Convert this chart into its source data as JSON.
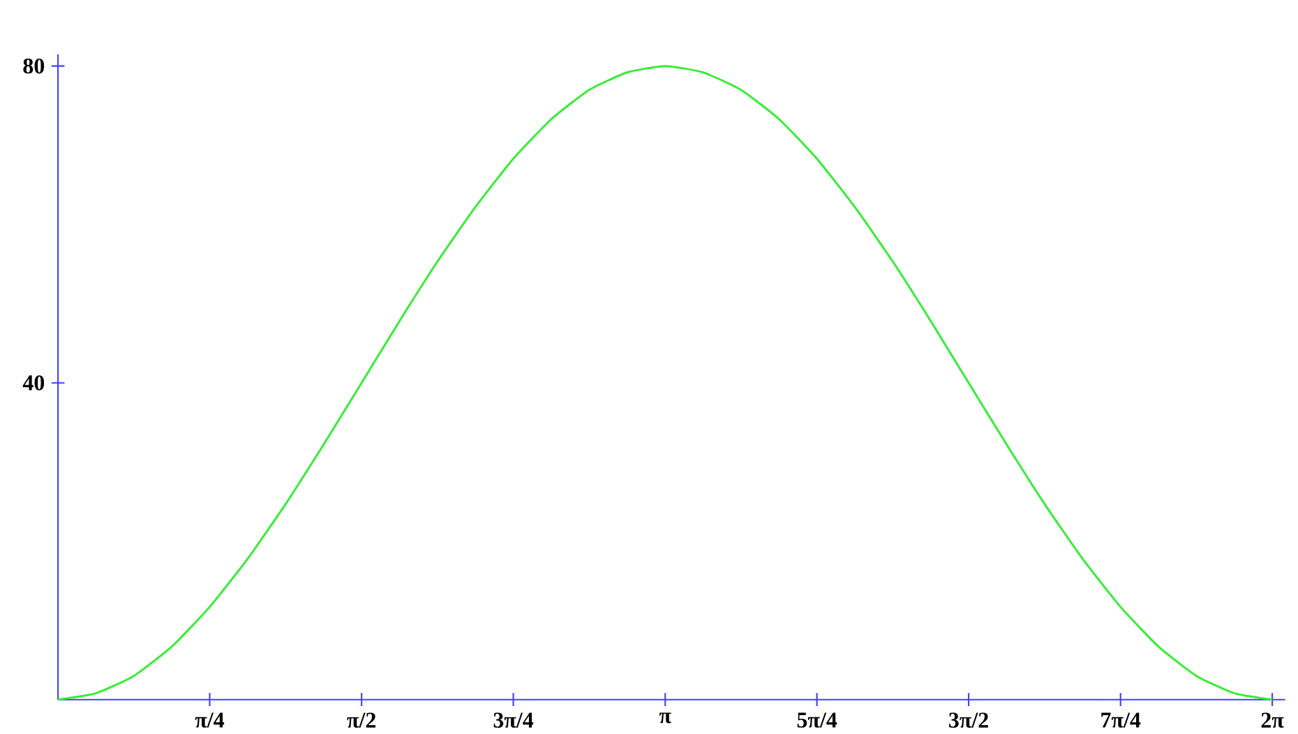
{
  "chart_data": {
    "type": "line",
    "x": [
      0,
      0.196,
      0.393,
      0.589,
      0.785,
      0.982,
      1.178,
      1.374,
      1.571,
      1.767,
      1.963,
      2.16,
      2.356,
      2.553,
      2.749,
      2.945,
      3.142,
      3.338,
      3.534,
      3.731,
      3.927,
      4.123,
      4.32,
      4.516,
      4.712,
      4.909,
      5.105,
      5.301,
      5.498,
      5.694,
      5.89,
      6.087,
      6.283
    ],
    "values": [
      0,
      0.8,
      3.0,
      6.7,
      11.7,
      17.8,
      24.7,
      32.2,
      40,
      47.8,
      55.3,
      62.2,
      68.3,
      73.3,
      77.0,
      79.2,
      80,
      79.2,
      77.0,
      73.3,
      68.3,
      62.2,
      55.3,
      47.8,
      40,
      32.2,
      24.7,
      17.8,
      11.7,
      6.7,
      3.0,
      0.8,
      0
    ],
    "color": "#33ee33",
    "xlim": [
      0,
      6.35
    ],
    "ylim": [
      0,
      81.5
    ],
    "xticks": [
      {
        "value": 0.785,
        "label": "π/4"
      },
      {
        "value": 1.571,
        "label": "π/2"
      },
      {
        "value": 2.356,
        "label": "3π/4"
      },
      {
        "value": 3.142,
        "label": "π"
      },
      {
        "value": 3.927,
        "label": "5π/4"
      },
      {
        "value": 4.712,
        "label": "3π/2"
      },
      {
        "value": 5.498,
        "label": "7π/4"
      },
      {
        "value": 6.283,
        "label": "2π"
      }
    ],
    "yticks": [
      40,
      80
    ]
  }
}
